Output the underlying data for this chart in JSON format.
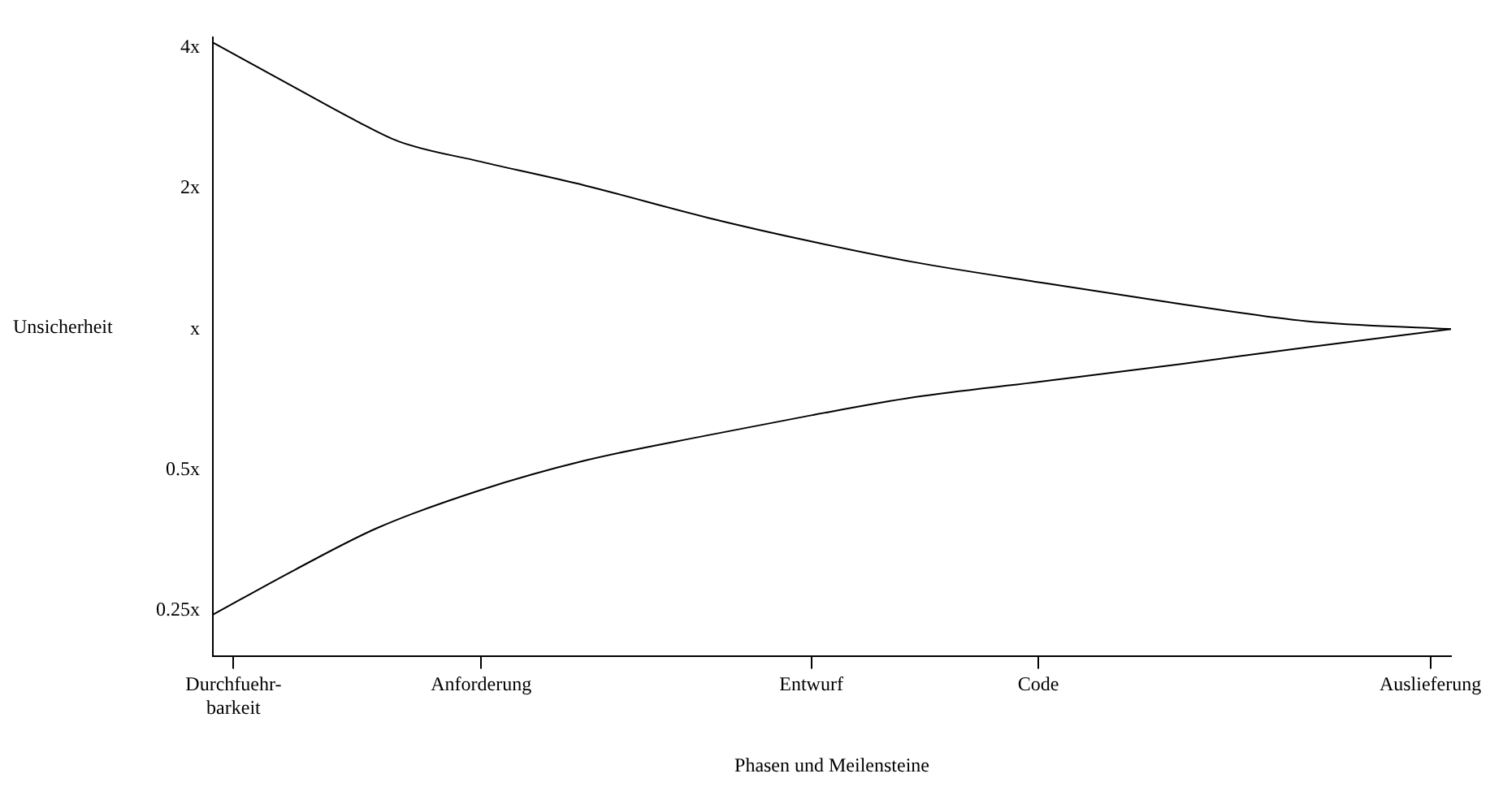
{
  "chart_data": {
    "type": "line",
    "ylabel": "Unsicherheit",
    "xlabel": "Phasen und Meilensteine",
    "log": "y",
    "categories": [
      null,
      "Durchfuehr-\nbarkeit",
      null,
      null,
      null,
      null,
      null,
      null,
      null,
      null,
      null,
      null,
      null,
      "Anforderung",
      null,
      null,
      null,
      null,
      null,
      null,
      null,
      null,
      null,
      null,
      null,
      null,
      null,
      null,
      null,
      "Entwurf",
      null,
      null,
      null,
      null,
      null,
      null,
      null,
      null,
      null,
      null,
      "Code",
      null,
      null,
      null,
      null,
      null,
      null,
      null,
      null,
      null,
      null,
      null,
      null,
      null,
      null,
      null,
      null,
      null,
      null,
      "Auslieferung",
      null
    ],
    "ylim": [
      0.2,
      4.2
    ],
    "yticks": [
      {
        "value": 0.25,
        "label": "0.25x"
      },
      {
        "value": 0.5,
        "label": "0.5x"
      },
      {
        "value": 1,
        "label": "x"
      },
      {
        "value": 2,
        "label": "2x"
      },
      {
        "value": 4,
        "label": "4x"
      }
    ],
    "marker": "none",
    "line_style": "solid",
    "series": [
      {
        "color": "#000000",
        "values": [
          4.1,
          null,
          null,
          null,
          3.28,
          null,
          null,
          2.78,
          null,
          2.52,
          null,
          null,
          null,
          2.28,
          null,
          null,
          null,
          null,
          2.03,
          null,
          null,
          null,
          null,
          null,
          1.73,
          null,
          null,
          null,
          null,
          1.54,
          null,
          null,
          null,
          null,
          1.39,
          null,
          null,
          null,
          null,
          null,
          1.26,
          null,
          null,
          null,
          null,
          null,
          null,
          1.13,
          null,
          null,
          null,
          null,
          null,
          1.04,
          null,
          null,
          null,
          null,
          null,
          null,
          1.0
        ]
      },
      {
        "color": "#000000",
        "values": [
          0.245,
          null,
          null,
          null,
          0.306,
          null,
          null,
          null,
          0.376,
          null,
          null,
          null,
          null,
          0.453,
          null,
          null,
          null,
          null,
          0.523,
          null,
          null,
          null,
          null,
          null,
          0.593,
          null,
          null,
          null,
          null,
          0.654,
          null,
          null,
          null,
          null,
          0.715,
          null,
          null,
          null,
          null,
          null,
          0.771,
          null,
          null,
          null,
          null,
          null,
          null,
          0.843,
          null,
          null,
          null,
          null,
          null,
          0.914,
          null,
          null,
          null,
          null,
          null,
          null,
          1.0
        ]
      }
    ]
  }
}
